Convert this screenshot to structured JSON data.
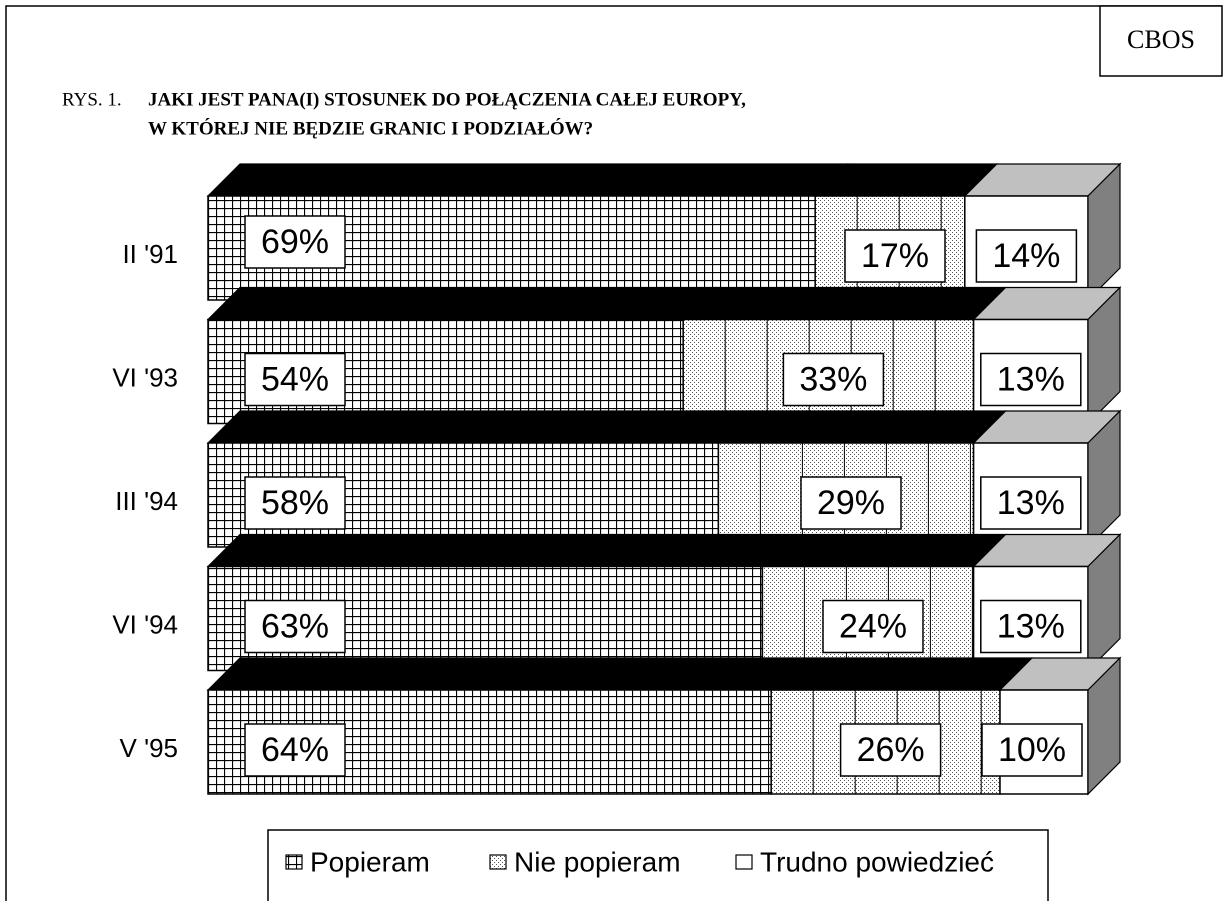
{
  "chart_data": {
    "type": "stacked-bar-3d",
    "source": "CBOS",
    "figure_label": "RYS. 1.",
    "title": [
      "JAKI JEST PANA(I) STOSUNEK DO POŁĄCZENIA CAŁEJ EUROPY,",
      "W KTÓREJ NIE BĘDZIE GRANIC I PODZIAŁÓW?"
    ],
    "categories": [
      "II '91",
      "VI '93",
      "III '94",
      "VI '94",
      "V '95"
    ],
    "xlim": [
      0,
      100
    ],
    "series": [
      {
        "name": "Popieram",
        "color": "#000000",
        "values": [
          69,
          54,
          58,
          63,
          64
        ],
        "value_labels": [
          "69%",
          "54%",
          "58%",
          "63%",
          "64%"
        ]
      },
      {
        "name": "Nie popieram",
        "color": "#000000",
        "values": [
          17,
          33,
          29,
          24,
          26
        ],
        "value_labels": [
          "17%",
          "33%",
          "29%",
          "24%",
          "26%"
        ]
      },
      {
        "name": "Trudno powiedzieć",
        "color": "#c0c0c0",
        "values": [
          14,
          13,
          13,
          13,
          10
        ],
        "value_labels": [
          "14%",
          "13%",
          "13%",
          "13%",
          "10%"
        ]
      }
    ]
  }
}
